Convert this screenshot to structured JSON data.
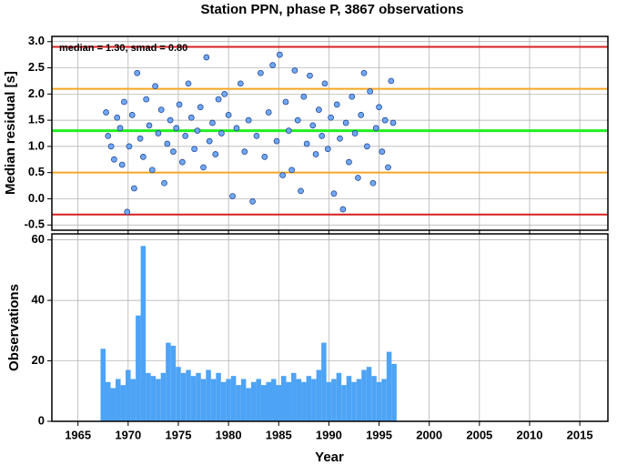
{
  "chart_data": [
    {
      "type": "scatter",
      "title": "Station PPN, phase P, 3867 observations",
      "y_label": "Median residual [s]",
      "annotation": "median = 1.30, smad = 0.80",
      "xlim": [
        1962.4,
        2017.8
      ],
      "xticks": [
        1965,
        1970,
        1975,
        1980,
        1985,
        1990,
        1995,
        2000,
        2005,
        2010,
        2015
      ],
      "ylim": [
        -0.6,
        3.1
      ],
      "yticks": [
        {
          "value": 3,
          "label": "3.0"
        },
        2.5,
        {
          "value": 2,
          "label": "2.0"
        },
        1.5,
        {
          "value": 1,
          "label": "1.0"
        },
        0.5,
        {
          "value": 0,
          "label": "0.0"
        },
        -0.5
      ],
      "grid": true,
      "color": "#6fa8f5",
      "hlines": [
        {
          "value": 2.9,
          "color": "#d62020"
        },
        {
          "value": 2.1,
          "color": "#f5a623"
        },
        {
          "value": 1.3,
          "color": "#22ee22"
        },
        {
          "value": 0.5,
          "color": "#f5a623"
        },
        {
          "value": -0.3,
          "color": "#d62020"
        }
      ],
      "x": [
        1967.8,
        1968.0,
        1968.3,
        1968.6,
        1968.9,
        1969.2,
        1969.4,
        1969.6,
        1969.9,
        1970.1,
        1970.4,
        1970.6,
        1970.9,
        1971.2,
        1971.5,
        1971.8,
        1972.1,
        1972.4,
        1972.7,
        1973.0,
        1973.3,
        1973.6,
        1973.9,
        1974.2,
        1974.5,
        1974.8,
        1975.1,
        1975.4,
        1975.7,
        1976.0,
        1976.3,
        1976.6,
        1976.9,
        1977.2,
        1977.5,
        1977.8,
        1978.1,
        1978.4,
        1978.7,
        1979.0,
        1979.3,
        1979.6,
        1980.0,
        1980.4,
        1980.8,
        1981.2,
        1981.6,
        1982.0,
        1982.4,
        1982.8,
        1983.2,
        1983.6,
        1984.0,
        1984.4,
        1984.8,
        1985.1,
        1985.4,
        1985.7,
        1986.0,
        1986.3,
        1986.6,
        1986.9,
        1987.2,
        1987.5,
        1987.8,
        1988.1,
        1988.4,
        1988.7,
        1989.0,
        1989.3,
        1989.6,
        1989.9,
        1990.2,
        1990.5,
        1990.8,
        1991.1,
        1991.4,
        1991.7,
        1992.0,
        1992.3,
        1992.6,
        1992.9,
        1993.2,
        1993.5,
        1993.8,
        1994.1,
        1994.4,
        1994.7,
        1995.0,
        1995.3,
        1995.6,
        1995.9,
        1996.2,
        1996.4
      ],
      "values": [
        1.65,
        1.2,
        1.0,
        0.75,
        1.55,
        1.35,
        0.65,
        1.85,
        -0.25,
        1.0,
        1.6,
        0.2,
        2.4,
        1.15,
        0.8,
        1.9,
        1.4,
        0.55,
        2.15,
        1.25,
        1.7,
        0.3,
        1.05,
        1.5,
        0.9,
        1.35,
        1.8,
        0.7,
        1.2,
        2.2,
        1.55,
        0.95,
        1.3,
        1.75,
        0.6,
        2.7,
        1.1,
        1.45,
        0.85,
        1.9,
        1.25,
        2.0,
        1.6,
        0.05,
        1.35,
        2.2,
        0.9,
        1.5,
        -0.05,
        1.2,
        2.4,
        0.8,
        1.65,
        2.55,
        1.1,
        2.75,
        0.45,
        1.85,
        1.3,
        0.55,
        2.45,
        1.5,
        0.15,
        1.95,
        1.05,
        2.35,
        1.4,
        0.85,
        1.7,
        1.2,
        2.2,
        0.95,
        1.55,
        0.1,
        1.8,
        1.15,
        -0.2,
        1.45,
        0.7,
        1.95,
        1.25,
        0.4,
        1.6,
        2.4,
        1.0,
        2.05,
        0.3,
        1.35,
        1.75,
        0.9,
        1.5,
        0.6,
        2.25,
        1.45
      ]
    },
    {
      "type": "bar",
      "y_label": "Observations",
      "x_label": "Year",
      "xlim": [
        1962.4,
        2017.8
      ],
      "xticks": [
        1965,
        1970,
        1975,
        1980,
        1985,
        1990,
        1995,
        2000,
        2005,
        2010,
        2015
      ],
      "ylim": [
        0,
        62
      ],
      "yticks": [
        0,
        20,
        40,
        60
      ],
      "grid": true,
      "color": "#4da3f5",
      "x": [
        1967.5,
        1968,
        1968.5,
        1969,
        1969.5,
        1970,
        1970.5,
        1971,
        1971.5,
        1972,
        1972.5,
        1973,
        1973.5,
        1974,
        1974.5,
        1975,
        1975.5,
        1976,
        1976.5,
        1977,
        1977.5,
        1978,
        1978.5,
        1979,
        1979.5,
        1980,
        1980.5,
        1981,
        1981.5,
        1982,
        1982.5,
        1983,
        1983.5,
        1984,
        1984.5,
        1985,
        1985.5,
        1986,
        1986.5,
        1987,
        1987.5,
        1988,
        1988.5,
        1989,
        1989.5,
        1990,
        1990.5,
        1991,
        1991.5,
        1992,
        1992.5,
        1993,
        1993.5,
        1994,
        1994.5,
        1995,
        1995.5,
        1996,
        1996.5
      ],
      "values": [
        24,
        13,
        11,
        14,
        12,
        17,
        14,
        35,
        58,
        16,
        15,
        14,
        16,
        26,
        25,
        18,
        16,
        17,
        15,
        16,
        14,
        17,
        14,
        16,
        13,
        14,
        15,
        12,
        14,
        11,
        13,
        14,
        12,
        13,
        14,
        12,
        15,
        13,
        16,
        14,
        13,
        15,
        14,
        17,
        26,
        13,
        14,
        16,
        12,
        15,
        13,
        14,
        17,
        18,
        15,
        13,
        14,
        23,
        19
      ]
    }
  ]
}
